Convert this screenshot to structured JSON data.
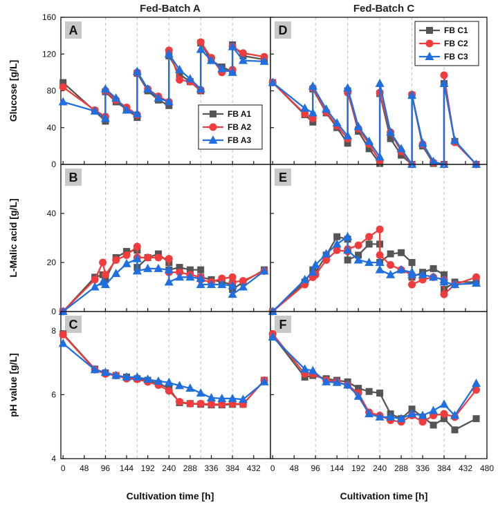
{
  "figure": {
    "col_titles": [
      "Fed-Batch A",
      "Fed-Batch C"
    ],
    "xlabel": "Cultivation time [h]",
    "colors": {
      "s1": "#555555",
      "s2": "#f03c3c",
      "s3": "#1f6fe0"
    }
  },
  "chart_data": [
    {
      "type": "line",
      "letter": "A",
      "row": 0,
      "col": 0,
      "ylabel": "Glucose [g/L]",
      "ylim": [
        0,
        160
      ],
      "yticks": [
        0,
        40,
        80,
        120,
        160
      ],
      "xlim": [
        -5,
        470
      ],
      "xticks": [
        0,
        48,
        96,
        144,
        192,
        240,
        288,
        336,
        384,
        432
      ],
      "show_xticks": false,
      "feed_lines": [
        96,
        168,
        240,
        312,
        384
      ],
      "legend": {
        "position": "bottom-right",
        "entries": [
          "FB  A1",
          "FB  A2",
          "FB  A3"
        ]
      },
      "series": [
        {
          "name": "FB  A1",
          "color": "#555555",
          "marker": "square",
          "x": [
            0,
            72,
            96,
            96,
            120,
            144,
            168,
            168,
            192,
            216,
            240,
            240,
            264,
            288,
            312,
            312,
            336,
            360,
            384,
            384,
            408,
            456
          ],
          "y": [
            89,
            58,
            47,
            79,
            68,
            60,
            51,
            99,
            80,
            70,
            64,
            118,
            98,
            90,
            80,
            132,
            113,
            106,
            101,
            130,
            118,
            114
          ]
        },
        {
          "name": "FB  A2",
          "color": "#f03c3c",
          "marker": "circle",
          "x": [
            0,
            72,
            96,
            96,
            120,
            144,
            168,
            168,
            192,
            216,
            240,
            240,
            264,
            288,
            312,
            312,
            336,
            360,
            384,
            384,
            408,
            456
          ],
          "y": [
            84,
            59,
            52,
            80,
            70,
            62,
            54,
            100,
            82,
            74,
            68,
            124,
            92,
            90,
            81,
            133,
            116,
            100,
            103,
            128,
            121,
            117
          ]
        },
        {
          "name": "FB  A3",
          "color": "#1f6fe0",
          "marker": "triangle",
          "x": [
            0,
            72,
            96,
            96,
            120,
            144,
            168,
            168,
            192,
            216,
            240,
            240,
            264,
            288,
            312,
            312,
            336,
            360,
            384,
            384,
            408,
            456
          ],
          "y": [
            68,
            58,
            50,
            82,
            72,
            59,
            55,
            101,
            82,
            72,
            68,
            120,
            103,
            93,
            82,
            125,
            113,
            104,
            100,
            128,
            113,
            112
          ]
        }
      ]
    },
    {
      "type": "line",
      "letter": "D",
      "row": 0,
      "col": 1,
      "ylabel": "",
      "ylim": [
        0,
        160
      ],
      "yticks": [
        0,
        40,
        80,
        120,
        160
      ],
      "xlim": [
        -5,
        480
      ],
      "xticks": [
        0,
        48,
        96,
        144,
        192,
        240,
        288,
        336,
        384,
        432,
        480
      ],
      "show_xticks": false,
      "feed_lines": [
        96,
        168,
        240,
        312,
        384
      ],
      "legend": {
        "position": "top-right",
        "entries": [
          "FB C1",
          "FB C2",
          "FB C3"
        ]
      },
      "series": [
        {
          "name": "FB C1",
          "color": "#555555",
          "marker": "square",
          "x": [
            0,
            72,
            90,
            90,
            120,
            144,
            168,
            168,
            192,
            216,
            240,
            240,
            264,
            288,
            312,
            312,
            336,
            360,
            384,
            384,
            408,
            456
          ],
          "y": [
            89,
            54,
            46,
            82,
            56,
            40,
            23,
            80,
            36,
            17,
            1,
            77,
            28,
            10,
            0,
            75,
            20,
            1,
            0,
            88,
            25,
            0
          ]
        },
        {
          "name": "FB C2",
          "color": "#f03c3c",
          "marker": "circle",
          "x": [
            0,
            72,
            90,
            90,
            120,
            144,
            168,
            168,
            192,
            216,
            240,
            240,
            264,
            288,
            312,
            312,
            336,
            360,
            384,
            384,
            408,
            456
          ],
          "y": [
            89,
            55,
            50,
            83,
            57,
            42,
            28,
            78,
            39,
            22,
            4,
            78,
            35,
            14,
            0,
            76,
            22,
            2,
            0,
            97,
            24,
            0
          ]
        },
        {
          "name": "FB C3",
          "color": "#1f6fe0",
          "marker": "triangle",
          "x": [
            0,
            72,
            90,
            90,
            120,
            144,
            168,
            168,
            192,
            216,
            240,
            240,
            264,
            288,
            312,
            312,
            336,
            360,
            384,
            384,
            408,
            456
          ],
          "y": [
            89,
            61,
            56,
            85,
            60,
            45,
            31,
            83,
            41,
            25,
            8,
            88,
            35,
            17,
            0,
            75,
            23,
            3,
            0,
            88,
            26,
            0
          ]
        }
      ]
    },
    {
      "type": "line",
      "letter": "B",
      "row": 1,
      "col": 0,
      "ylabel": "L-Malic acid [g/L]",
      "ylim": [
        0,
        60
      ],
      "yticks": [
        0,
        20,
        40
      ],
      "show_top_tick": false,
      "xlim": [
        -5,
        470
      ],
      "xticks": [
        0,
        48,
        96,
        144,
        192,
        240,
        288,
        336,
        384,
        432
      ],
      "show_xticks": false,
      "feed_lines": [
        96,
        168,
        240,
        312,
        384
      ],
      "series": [
        {
          "name": "FB  A1",
          "color": "#555555",
          "marker": "square",
          "x": [
            0,
            72,
            90,
            96,
            120,
            144,
            168,
            168,
            192,
            216,
            240,
            240,
            264,
            288,
            312,
            312,
            336,
            360,
            384,
            384,
            408,
            456
          ],
          "y": [
            0,
            14,
            15,
            13,
            22,
            24.5,
            25,
            18,
            22,
            23.5,
            20,
            17,
            18,
            17,
            17,
            14,
            13,
            12,
            11,
            9,
            12,
            17
          ]
        },
        {
          "name": "FB  A2",
          "color": "#f03c3c",
          "marker": "circle",
          "x": [
            0,
            72,
            90,
            96,
            120,
            144,
            168,
            168,
            192,
            216,
            240,
            240,
            264,
            288,
            312,
            312,
            336,
            360,
            384,
            384,
            408,
            456
          ],
          "y": [
            0,
            13,
            20,
            15,
            21,
            23,
            26.5,
            22,
            22,
            22,
            21.5,
            16,
            16,
            15,
            14,
            13,
            12,
            13.5,
            14,
            12,
            12.5,
            16.5
          ]
        },
        {
          "name": "FB  A3",
          "color": "#1f6fe0",
          "marker": "triangle",
          "x": [
            0,
            72,
            90,
            96,
            120,
            144,
            168,
            168,
            192,
            216,
            240,
            240,
            264,
            288,
            312,
            312,
            336,
            360,
            384,
            384,
            408,
            456
          ],
          "y": [
            0,
            10,
            12,
            11,
            15.5,
            19.5,
            21.5,
            16.5,
            17.5,
            17.5,
            17,
            12,
            14,
            14,
            13.5,
            11,
            11,
            11,
            10.5,
            7,
            10,
            16.5
          ]
        }
      ]
    },
    {
      "type": "line",
      "letter": "E",
      "row": 1,
      "col": 1,
      "ylabel": "",
      "ylim": [
        0,
        60
      ],
      "yticks": [
        0,
        20,
        40
      ],
      "show_top_tick": false,
      "xlim": [
        -5,
        480
      ],
      "xticks": [
        0,
        48,
        96,
        144,
        192,
        240,
        288,
        336,
        384,
        432,
        480
      ],
      "show_xticks": false,
      "feed_lines": [
        96,
        168,
        240,
        312,
        384
      ],
      "series": [
        {
          "name": "FB C1",
          "color": "#555555",
          "marker": "square",
          "x": [
            0,
            72,
            90,
            96,
            120,
            144,
            168,
            168,
            192,
            216,
            240,
            240,
            264,
            288,
            312,
            312,
            336,
            360,
            384,
            384,
            408,
            456
          ],
          "y": [
            0,
            12,
            17,
            16,
            23,
            30.5,
            29.5,
            21,
            23,
            27.5,
            27.5,
            20,
            23.5,
            24,
            20,
            14,
            16,
            17.5,
            15,
            9,
            12,
            12
          ]
        },
        {
          "name": "FB C2",
          "color": "#f03c3c",
          "marker": "circle",
          "x": [
            0,
            72,
            90,
            96,
            120,
            144,
            168,
            168,
            192,
            216,
            240,
            240,
            264,
            288,
            312,
            312,
            336,
            360,
            384,
            384,
            408,
            456
          ],
          "y": [
            0,
            11,
            14,
            15,
            21,
            25,
            24.5,
            25.5,
            27,
            30.5,
            33.5,
            23,
            19,
            17,
            15,
            11,
            13,
            14,
            13,
            7,
            11,
            14
          ]
        },
        {
          "name": "FB C3",
          "color": "#1f6fe0",
          "marker": "triangle",
          "x": [
            0,
            72,
            90,
            96,
            120,
            144,
            168,
            168,
            192,
            216,
            240,
            240,
            264,
            288,
            312,
            312,
            336,
            360,
            384,
            384,
            408,
            456
          ],
          "y": [
            0,
            13,
            16,
            19,
            23.5,
            27.5,
            30.5,
            25,
            21,
            20,
            20,
            17,
            15,
            17,
            16,
            15,
            15,
            14,
            13,
            12,
            11,
            11.5
          ]
        }
      ]
    },
    {
      "type": "line",
      "letter": "C",
      "row": 2,
      "col": 0,
      "ylabel": "pH value [g/L]",
      "ylim": [
        4,
        8.6
      ],
      "yticks": [
        4,
        6,
        8
      ],
      "xlim": [
        -5,
        470
      ],
      "xticks": [
        0,
        48,
        96,
        144,
        192,
        240,
        288,
        336,
        384,
        432
      ],
      "show_xticks": true,
      "feed_lines": [
        96,
        168,
        240,
        312,
        384
      ],
      "series": [
        {
          "name": "FB  A1",
          "color": "#555555",
          "marker": "square",
          "x": [
            0,
            72,
            96,
            120,
            144,
            168,
            192,
            216,
            240,
            264,
            288,
            312,
            336,
            360,
            384,
            408,
            456
          ],
          "y": [
            7.9,
            6.8,
            6.68,
            6.6,
            6.55,
            6.5,
            6.45,
            6.35,
            6.2,
            5.75,
            5.72,
            5.7,
            5.68,
            5.68,
            5.7,
            5.7,
            6.45
          ]
        },
        {
          "name": "FB  A2",
          "color": "#f03c3c",
          "marker": "circle",
          "x": [
            0,
            72,
            96,
            120,
            144,
            168,
            192,
            216,
            240,
            264,
            288,
            312,
            336,
            360,
            384,
            408,
            456
          ],
          "y": [
            7.88,
            6.78,
            6.65,
            6.6,
            6.5,
            6.48,
            6.4,
            6.3,
            6.12,
            5.78,
            5.72,
            5.72,
            5.7,
            5.7,
            5.72,
            5.7,
            6.45
          ]
        },
        {
          "name": "FB  A3",
          "color": "#1f6fe0",
          "marker": "triangle",
          "x": [
            0,
            72,
            96,
            120,
            144,
            168,
            192,
            216,
            240,
            264,
            288,
            312,
            336,
            360,
            384,
            408,
            456
          ],
          "y": [
            7.6,
            6.78,
            6.7,
            6.6,
            6.55,
            6.55,
            6.48,
            6.42,
            6.38,
            6.28,
            6.2,
            6.05,
            5.9,
            5.88,
            5.88,
            5.85,
            6.4
          ]
        }
      ]
    },
    {
      "type": "line",
      "letter": "F",
      "row": 2,
      "col": 1,
      "ylabel": "",
      "ylim": [
        4,
        8.6
      ],
      "yticks": [
        4,
        6,
        8
      ],
      "xlim": [
        -5,
        480
      ],
      "xticks": [
        0,
        48,
        96,
        144,
        192,
        240,
        288,
        336,
        384,
        432,
        480
      ],
      "show_xticks": true,
      "feed_lines": [
        96,
        168,
        240,
        312,
        384
      ],
      "series": [
        {
          "name": "FB C1",
          "color": "#555555",
          "marker": "square",
          "x": [
            0,
            72,
            90,
            120,
            144,
            168,
            192,
            216,
            240,
            264,
            288,
            312,
            336,
            360,
            384,
            408,
            456
          ],
          "y": [
            7.85,
            6.55,
            6.6,
            6.5,
            6.45,
            6.4,
            6.2,
            6.1,
            6.05,
            5.4,
            5.25,
            5.55,
            5.3,
            5.05,
            5.25,
            4.9,
            5.25
          ]
        },
        {
          "name": "FB C2",
          "color": "#f03c3c",
          "marker": "circle",
          "x": [
            0,
            72,
            90,
            120,
            144,
            168,
            192,
            216,
            240,
            264,
            288,
            312,
            336,
            360,
            384,
            408,
            456
          ],
          "y": [
            7.9,
            6.65,
            6.65,
            6.45,
            6.4,
            6.3,
            6.05,
            5.45,
            5.35,
            5.2,
            5.15,
            5.35,
            5.15,
            5.35,
            5.4,
            5.3,
            6.15
          ]
        },
        {
          "name": "FB C3",
          "color": "#1f6fe0",
          "marker": "triangle",
          "x": [
            0,
            72,
            90,
            120,
            144,
            168,
            192,
            216,
            240,
            264,
            288,
            312,
            336,
            360,
            384,
            408,
            456
          ],
          "y": [
            7.8,
            6.8,
            6.75,
            6.4,
            6.38,
            6.3,
            5.95,
            5.4,
            5.3,
            5.3,
            5.25,
            5.4,
            5.35,
            5.5,
            5.7,
            5.35,
            6.35
          ]
        }
      ]
    }
  ]
}
